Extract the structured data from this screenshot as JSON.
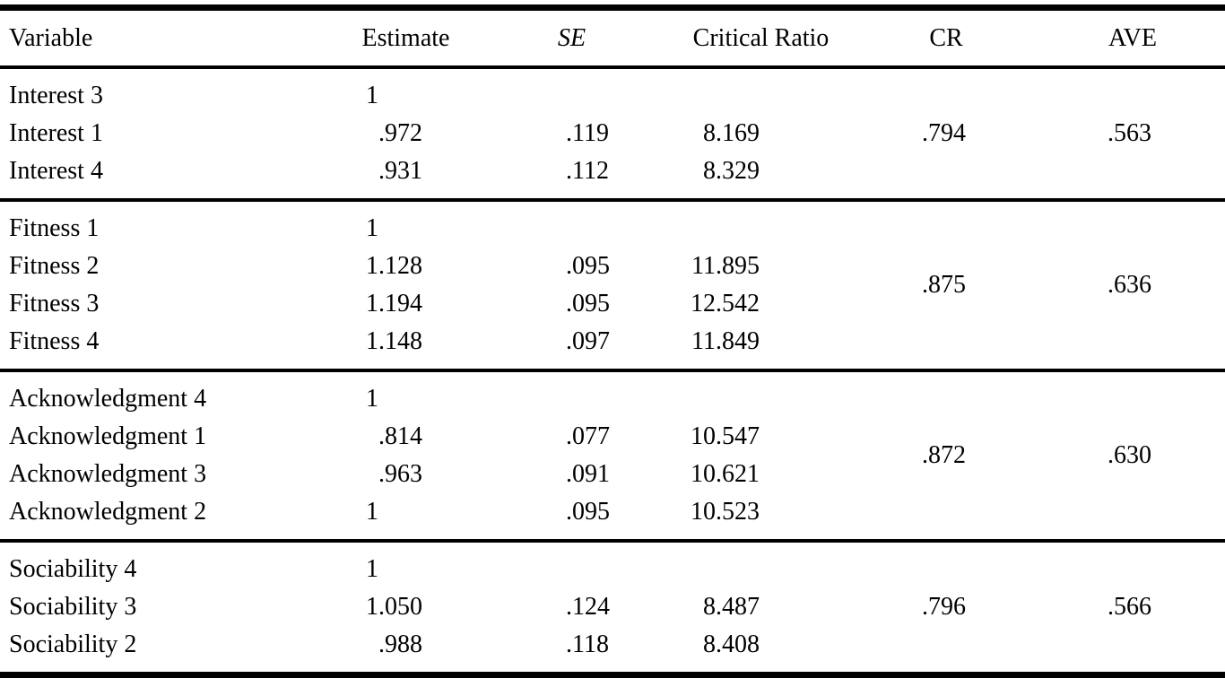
{
  "colors": {
    "background": "#ffffff",
    "text": "#000000",
    "rule": "#000000"
  },
  "table": {
    "columns": [
      {
        "label": "Variable"
      },
      {
        "label": "Estimate"
      },
      {
        "label": "SE",
        "italic": true
      },
      {
        "label": "Critical Ratio"
      },
      {
        "label": "CR"
      },
      {
        "label": "AVE"
      }
    ],
    "groups": [
      {
        "cr": ".794",
        "ave": ".563",
        "rows": [
          {
            "variable": "Interest 3",
            "estimate": "1",
            "se": "",
            "critical_ratio": ""
          },
          {
            "variable": "Interest 1",
            "estimate": ".972",
            "se": ".119",
            "critical_ratio": "8.169"
          },
          {
            "variable": "Interest 4",
            "estimate": ".931",
            "se": ".112",
            "critical_ratio": "8.329"
          }
        ]
      },
      {
        "cr": ".875",
        "ave": ".636",
        "rows": [
          {
            "variable": "Fitness 1",
            "estimate": "1",
            "se": "",
            "critical_ratio": ""
          },
          {
            "variable": "Fitness 2",
            "estimate": "1.128",
            "se": ".095",
            "critical_ratio": "11.895"
          },
          {
            "variable": "Fitness 3",
            "estimate": "1.194",
            "se": ".095",
            "critical_ratio": "12.542"
          },
          {
            "variable": "Fitness 4",
            "estimate": "1.148",
            "se": ".097",
            "critical_ratio": "11.849"
          }
        ]
      },
      {
        "cr": ".872",
        "ave": ".630",
        "rows": [
          {
            "variable": "Acknowledgment 4",
            "estimate": "1",
            "se": "",
            "critical_ratio": ""
          },
          {
            "variable": "Acknowledgment 1",
            "estimate": ".814",
            "se": ".077",
            "critical_ratio": "10.547"
          },
          {
            "variable": "Acknowledgment 3",
            "estimate": ".963",
            "se": ".091",
            "critical_ratio": "10.621"
          },
          {
            "variable": "Acknowledgment 2",
            "estimate": "1",
            "se": ".095",
            "critical_ratio": "10.523"
          }
        ]
      },
      {
        "cr": ".796",
        "ave": ".566",
        "rows": [
          {
            "variable": "Sociability 4",
            "estimate": "1",
            "se": "",
            "critical_ratio": ""
          },
          {
            "variable": "Sociability 3",
            "estimate": "1.050",
            "se": ".124",
            "critical_ratio": "8.487"
          },
          {
            "variable": "Sociability 2",
            "estimate": ".988",
            "se": ".118",
            "critical_ratio": "8.408"
          }
        ]
      }
    ]
  }
}
